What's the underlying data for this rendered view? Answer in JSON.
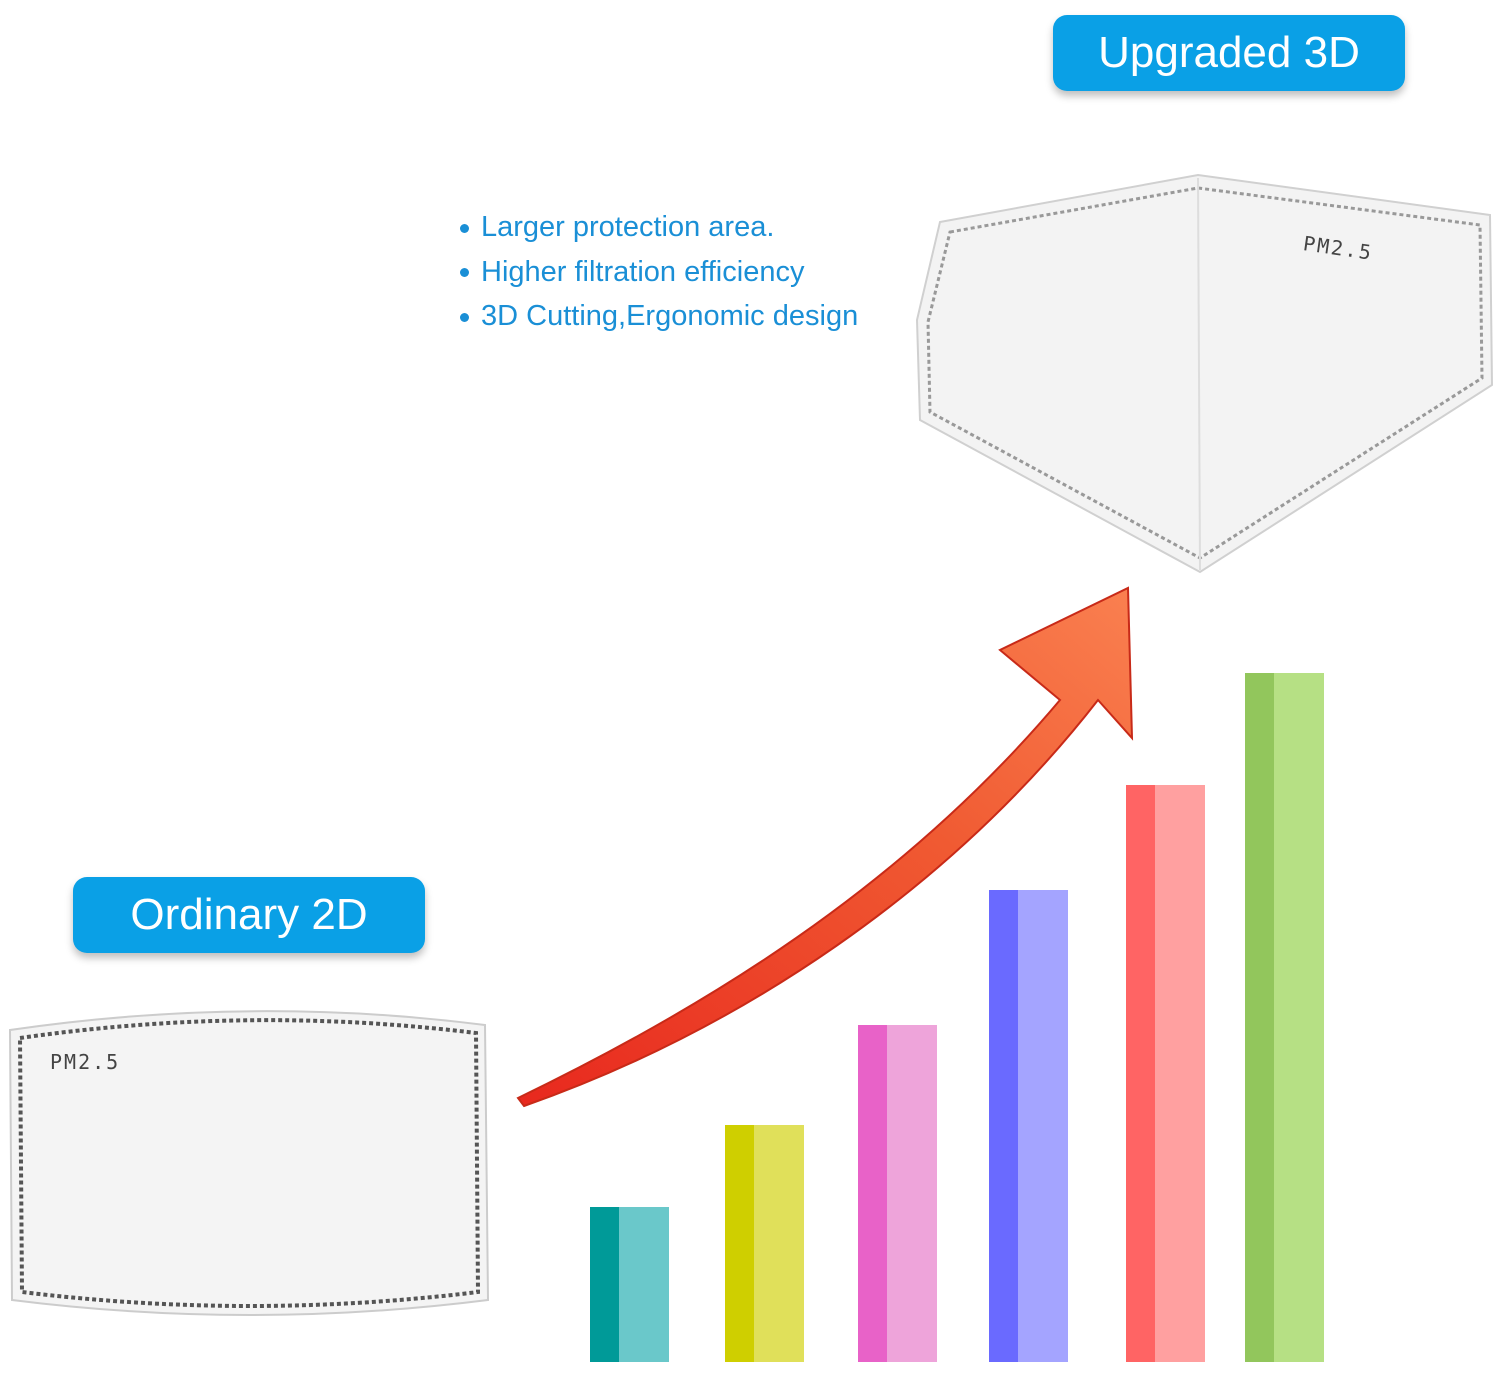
{
  "upgraded_badge": "Upgraded 3D",
  "ordinary_badge": "Ordinary 2D",
  "features": [
    "Larger protection area.",
    "Higher filtration efficiency",
    "3D Cutting,Ergonomic design"
  ],
  "mask_3d_label": "PM2.5",
  "mask_2d_label": "PM2.5",
  "colors": {
    "badge": "#0aa0e6",
    "feature_text": "#1a8fd6",
    "arrow": "#ee4a2a",
    "bars": [
      {
        "dark": "#009a98",
        "light": "#6ac8ca"
      },
      {
        "dark": "#cfcf00",
        "light": "#e0e05a"
      },
      {
        "dark": "#e862c8",
        "light": "#eea4da"
      },
      {
        "dark": "#6a6aff",
        "light": "#a4a4ff"
      },
      {
        "dark": "#ff6464",
        "light": "#ffa0a0"
      },
      {
        "dark": "#92c65c",
        "light": "#b6e084"
      }
    ]
  }
}
